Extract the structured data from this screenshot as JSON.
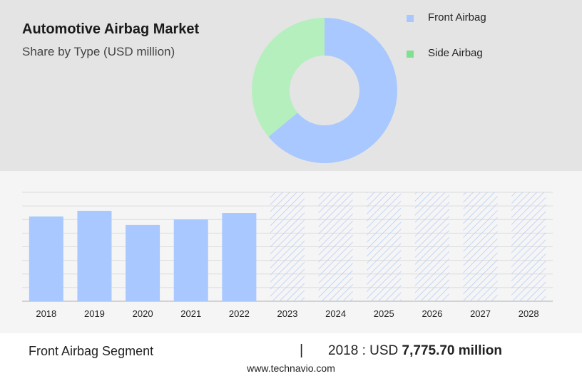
{
  "header": {
    "title": "Automotive Airbag Market",
    "subtitle": "Share by Type (USD million)"
  },
  "colors": {
    "front_airbag": "#a8c8ff",
    "side_airbag": "#b5efbd",
    "side_airbag_legend": "#7fe08f",
    "forecast_hatch": "#b9cff5"
  },
  "legend": {
    "items": [
      {
        "label": "Front Airbag",
        "color": "#a8c8ff"
      },
      {
        "label": "Side Airbag",
        "color": "#7fe08f"
      }
    ]
  },
  "chart_data": [
    {
      "type": "pie",
      "variant": "donut",
      "categories": [
        "Front Airbag",
        "Side Airbag"
      ],
      "values": [
        64,
        36
      ],
      "title": "Automotive Airbag Market",
      "subtitle": "Share by Type (USD million)",
      "legend": "top-right"
    },
    {
      "type": "bar",
      "categories": [
        "2018",
        "2019",
        "2020",
        "2021",
        "2022",
        "2023",
        "2024",
        "2025",
        "2026",
        "2027",
        "2028"
      ],
      "values": [
        7775.7,
        8300,
        7000,
        7500,
        8100,
        null,
        null,
        null,
        null,
        null,
        null
      ],
      "forecast_years": [
        "2023",
        "2024",
        "2025",
        "2026",
        "2027",
        "2028"
      ],
      "ylim": [
        0,
        10000
      ],
      "grid": true
    }
  ],
  "footer": {
    "segment": "Front Airbag Segment",
    "divider": "|",
    "year": "2018",
    "separator": ":",
    "currency": "USD",
    "amount": "7,775.70",
    "unit": "million",
    "website": "www.technavio.com"
  }
}
